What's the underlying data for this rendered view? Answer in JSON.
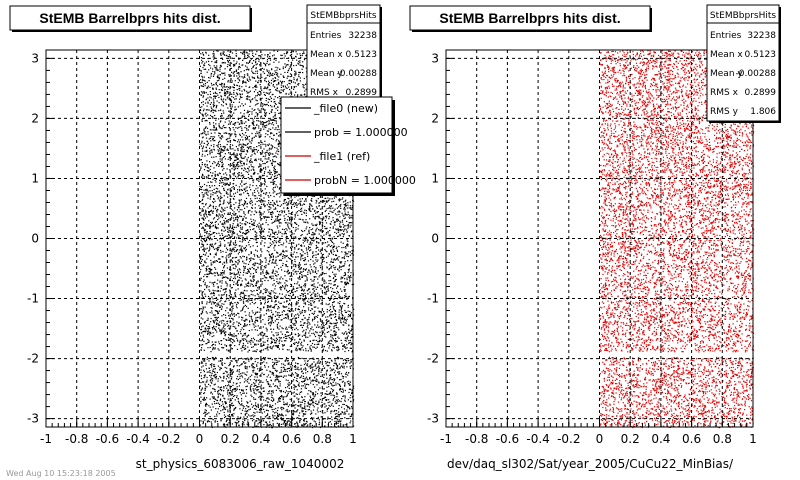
{
  "chart_data": [
    {
      "type": "scatter",
      "title": "StEMB Barrelbprs hits dist.",
      "xlabel": "st_physics_6083006_raw_1040002",
      "ylabel": "",
      "xlim": [
        -1,
        1
      ],
      "ylim": [
        -3.14,
        3.14
      ],
      "x_ticks": [
        "-1",
        "-0.8",
        "-0.6",
        "-0.4",
        "-0.2",
        "0",
        "0.2",
        "0.4",
        "0.6",
        "0.8",
        "1"
      ],
      "y_ticks": [
        "-3",
        "-2",
        "-1",
        "0",
        "1",
        "2",
        "3"
      ],
      "grid": true,
      "marker_color": "#000000",
      "filled_region": {
        "x": [
          0,
          1
        ],
        "y": [
          -3.14,
          3.14
        ],
        "gap_y": [
          -1.97,
          -1.88
        ]
      },
      "stats": {
        "name": "StEMBbprsHits",
        "rows": [
          {
            "label": "Entries",
            "value": "32238"
          },
          {
            "label": "Mean x",
            "value": "0.5123"
          },
          {
            "label": "Mean y",
            "value": "-0.00288"
          },
          {
            "label": "RMS x",
            "value": "0.2899"
          }
        ]
      },
      "legend": {
        "position": "top-right",
        "entries": [
          {
            "label": "_file0 (new)",
            "color": "#000000"
          },
          {
            "label": "prob = 1.000000",
            "color": "#000000"
          },
          {
            "label": "_file1 (ref)",
            "color": "#cc0000"
          },
          {
            "label": "probN = 1.000000",
            "color": "#cc0000"
          }
        ]
      }
    },
    {
      "type": "scatter",
      "title": "StEMB Barrelbprs hits dist.",
      "xlabel": "dev/daq_sl302/Sat/year_2005/CuCu22_MinBias/",
      "ylabel": "",
      "xlim": [
        -1,
        1
      ],
      "ylim": [
        -3.14,
        3.14
      ],
      "x_ticks": [
        "-1",
        "-0.8",
        "-0.6",
        "-0.4",
        "-0.2",
        "0",
        "0.2",
        "0.4",
        "0.6",
        "0.8",
        "1"
      ],
      "y_ticks": [
        "-3",
        "-2",
        "-1",
        "0",
        "1",
        "2",
        "3"
      ],
      "grid": true,
      "marker_color": "#e00000",
      "filled_region": {
        "x": [
          0,
          1
        ],
        "y": [
          -3.14,
          3.14
        ],
        "gap_y": [
          -1.97,
          -1.88
        ]
      },
      "stats": {
        "name": "StEMBbprsHits",
        "rows": [
          {
            "label": "Entries",
            "value": "32238"
          },
          {
            "label": "Mean x",
            "value": "0.5123"
          },
          {
            "label": "Mean y",
            "value": "-0.00288"
          },
          {
            "label": "RMS x",
            "value": "0.2899"
          },
          {
            "label": "RMS y",
            "value": "1.806"
          }
        ]
      }
    }
  ],
  "footer_text": "Wed Aug 10 15:23:18 2005"
}
